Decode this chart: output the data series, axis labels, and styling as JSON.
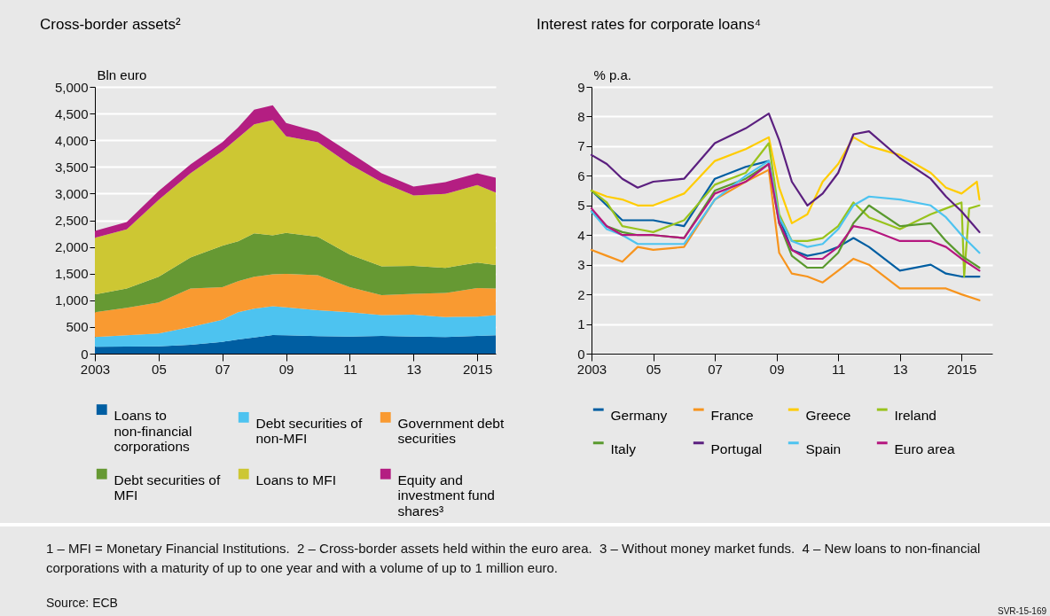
{
  "chart_data": [
    {
      "type": "area",
      "title": "Cross-border assets²",
      "ylabel": "Bln euro",
      "stacked": true,
      "grid": "y",
      "legend": "bottom",
      "x": [
        "2003-01",
        "2004-01",
        "2005-01",
        "2006-01",
        "2007-01",
        "2007-07",
        "2008-01",
        "2008-08",
        "2009-01",
        "2010-01",
        "2011-01",
        "2012-01",
        "2013-01",
        "2014-01",
        "2015-01",
        "2015-08"
      ],
      "xlim": [
        "2003-01",
        "2015-08"
      ],
      "xticks": [
        {
          "value": "2003-01",
          "label": "2003"
        },
        {
          "value": "2005-01",
          "label": "05"
        },
        {
          "value": "2007-01",
          "label": "07"
        },
        {
          "value": "2009-01",
          "label": "09"
        },
        {
          "value": "2011-01",
          "label": "11"
        },
        {
          "value": "2013-01",
          "label": "13"
        },
        {
          "value": "2015-01",
          "label": "2015"
        }
      ],
      "ylim": [
        0,
        5000
      ],
      "yticks": [
        0,
        500,
        {
          "value": 1000,
          "label": "1,000"
        },
        {
          "value": 1500,
          "label": "1,500"
        },
        {
          "value": 2000,
          "label": "2,000"
        },
        {
          "value": 2500,
          "label": "2,500"
        },
        {
          "value": 3000,
          "label": "3,000"
        },
        {
          "value": 3500,
          "label": "3,500"
        },
        {
          "value": 4000,
          "label": "4,000"
        },
        {
          "value": 4500,
          "label": "4,500"
        },
        {
          "value": 5000,
          "label": "5,000"
        }
      ],
      "series": [
        {
          "name": "Loans to non-financial corporations",
          "color": "#005ea2",
          "values": [
            127,
            133,
            139,
            166,
            222,
            265,
            305,
            349,
            344,
            327,
            321,
            333,
            321,
            310,
            333,
            344
          ]
        },
        {
          "name": "Debt securities of non-MFI",
          "color": "#4dc3f0",
          "values": [
            183,
            211,
            238,
            333,
            415,
            511,
            537,
            538,
            526,
            488,
            455,
            388,
            411,
            377,
            360,
            377
          ]
        },
        {
          "name": "Government debt securities",
          "color": "#f99a31",
          "values": [
            466,
            515,
            582,
            720,
            610,
            582,
            599,
            599,
            627,
            654,
            471,
            377,
            388,
            449,
            538,
            498
          ]
        },
        {
          "name": "Debt securities of MFI",
          "color": "#669933",
          "values": [
            333,
            360,
            482,
            582,
            776,
            748,
            815,
            731,
            765,
            721,
            610,
            537,
            526,
            471,
            476,
            444
          ]
        },
        {
          "name": "Loans to MFI",
          "color": "#cdc733",
          "values": [
            1064,
            1109,
            1441,
            1580,
            1774,
            1940,
            2044,
            2162,
            1812,
            1773,
            1691,
            1580,
            1320,
            1386,
            1453,
            1358
          ]
        },
        {
          "name": "Equity and investment fund shares³",
          "color": "#b41e82",
          "values": [
            127,
            139,
            167,
            167,
            166,
            194,
            273,
            277,
            249,
            194,
            221,
            166,
            166,
            222,
            221,
            277
          ]
        }
      ]
    },
    {
      "type": "line",
      "title": "Interest rates for corporate loans⁴",
      "ylabel": "% p.a.",
      "grid": "y",
      "legend": "bottom",
      "xlim": [
        "2003-01",
        "2016-01"
      ],
      "xticks": [
        {
          "value": "2003-01",
          "label": "2003"
        },
        {
          "value": "2005-01",
          "label": "05"
        },
        {
          "value": "2007-01",
          "label": "07"
        },
        {
          "value": "2009-01",
          "label": "09"
        },
        {
          "value": "2011-01",
          "label": "11"
        },
        {
          "value": "2013-01",
          "label": "13"
        },
        {
          "value": "2015-01",
          "label": "2015"
        }
      ],
      "ylim": [
        0,
        9
      ],
      "yticks": [
        0,
        1,
        2,
        3,
        4,
        5,
        6,
        7,
        8,
        9
      ],
      "x": [
        "2003-01",
        "2003-07",
        "2004-01",
        "2004-07",
        "2005-01",
        "2006-01",
        "2007-01",
        "2008-01",
        "2008-10",
        "2009-02",
        "2009-07",
        "2010-01",
        "2010-07",
        "2011-01",
        "2011-07",
        "2012-01",
        "2013-01",
        "2014-01",
        "2014-07",
        "2015-01",
        "2015-08"
      ],
      "series": [
        {
          "name": "Germany",
          "color": "#005ea2",
          "values": [
            5.5,
            5.0,
            4.5,
            4.5,
            4.5,
            4.3,
            5.9,
            6.3,
            6.5,
            4.6,
            3.5,
            3.3,
            3.4,
            3.6,
            3.9,
            3.6,
            2.8,
            3.0,
            2.7,
            2.6,
            2.6
          ]
        },
        {
          "name": "France",
          "color": "#f7941d",
          "values": [
            3.5,
            3.3,
            3.1,
            3.6,
            3.5,
            3.6,
            5.2,
            5.8,
            6.2,
            3.4,
            2.7,
            2.6,
            2.4,
            2.8,
            3.2,
            3.0,
            2.2,
            2.2,
            2.2,
            2.0,
            1.8
          ]
        },
        {
          "name": "Greece",
          "color": "#ffcc00",
          "x": [
            "2003-01",
            "2003-07",
            "2004-01",
            "2004-07",
            "2005-01",
            "2006-01",
            "2007-01",
            "2008-01",
            "2008-10",
            "2009-02",
            "2009-07",
            "2010-01",
            "2010-07",
            "2011-01",
            "2011-07",
            "2012-01",
            "2013-01",
            "2014-01",
            "2014-07",
            "2015-01",
            "2015-07",
            "2015-08"
          ],
          "values": [
            5.5,
            5.3,
            5.2,
            5.0,
            5.0,
            5.4,
            6.5,
            6.9,
            7.3,
            5.6,
            4.4,
            4.7,
            5.8,
            6.4,
            7.3,
            7.0,
            6.7,
            6.1,
            5.6,
            5.4,
            5.8,
            5.2
          ]
        },
        {
          "name": "Ireland",
          "color": "#99c31c",
          "x": [
            "2003-01",
            "2003-07",
            "2004-01",
            "2004-07",
            "2005-01",
            "2006-01",
            "2007-01",
            "2008-01",
            "2008-10",
            "2009-02",
            "2009-07",
            "2010-01",
            "2010-07",
            "2011-01",
            "2011-07",
            "2012-01",
            "2013-01",
            "2014-01",
            "2014-07",
            "2015-01",
            "2015-02",
            "2015-04",
            "2015-08"
          ],
          "values": [
            5.5,
            5.1,
            4.3,
            4.2,
            4.1,
            4.5,
            5.7,
            6.1,
            7.1,
            4.7,
            3.8,
            3.8,
            3.9,
            4.3,
            5.1,
            4.6,
            4.2,
            4.7,
            4.9,
            5.1,
            2.6,
            4.9,
            5.0
          ]
        },
        {
          "name": "Italy",
          "color": "#5a9a2e",
          "values": [
            4.8,
            4.3,
            4.1,
            4.0,
            4.0,
            3.9,
            5.5,
            5.9,
            6.4,
            4.4,
            3.3,
            2.9,
            2.9,
            3.4,
            4.4,
            5.0,
            4.3,
            4.4,
            3.8,
            3.3,
            2.9
          ]
        },
        {
          "name": "Portugal",
          "color": "#5b1f7f",
          "values": [
            6.7,
            6.4,
            5.9,
            5.6,
            5.8,
            5.9,
            7.1,
            7.6,
            8.1,
            7.2,
            5.8,
            5.0,
            5.4,
            6.1,
            7.4,
            7.5,
            6.6,
            5.9,
            5.3,
            4.8,
            4.1
          ]
        },
        {
          "name": "Spain",
          "color": "#4dc3f0",
          "values": [
            4.8,
            4.2,
            4.0,
            3.7,
            3.7,
            3.7,
            5.2,
            6.0,
            6.5,
            4.6,
            3.8,
            3.6,
            3.7,
            4.2,
            5.0,
            5.3,
            5.2,
            5.0,
            4.6,
            4.0,
            3.4
          ]
        },
        {
          "name": "Euro area",
          "color": "#b5177f",
          "values": [
            4.9,
            4.3,
            4.0,
            4.0,
            4.0,
            3.9,
            5.4,
            5.8,
            6.4,
            4.4,
            3.5,
            3.2,
            3.2,
            3.6,
            4.3,
            4.2,
            3.8,
            3.8,
            3.6,
            3.2,
            2.8
          ]
        }
      ],
      "annotations": [
        "1 – MFI = Monetary Financial Institutions.  2 – Cross-border assets held within the euro area.  3 – Without money market funds.  4 – New loans to non-financial corporations with a maturity of up to one year and with a volume of up to 1 million euro.",
        "Source: ECB",
        "SVR-15-169"
      ]
    }
  ]
}
